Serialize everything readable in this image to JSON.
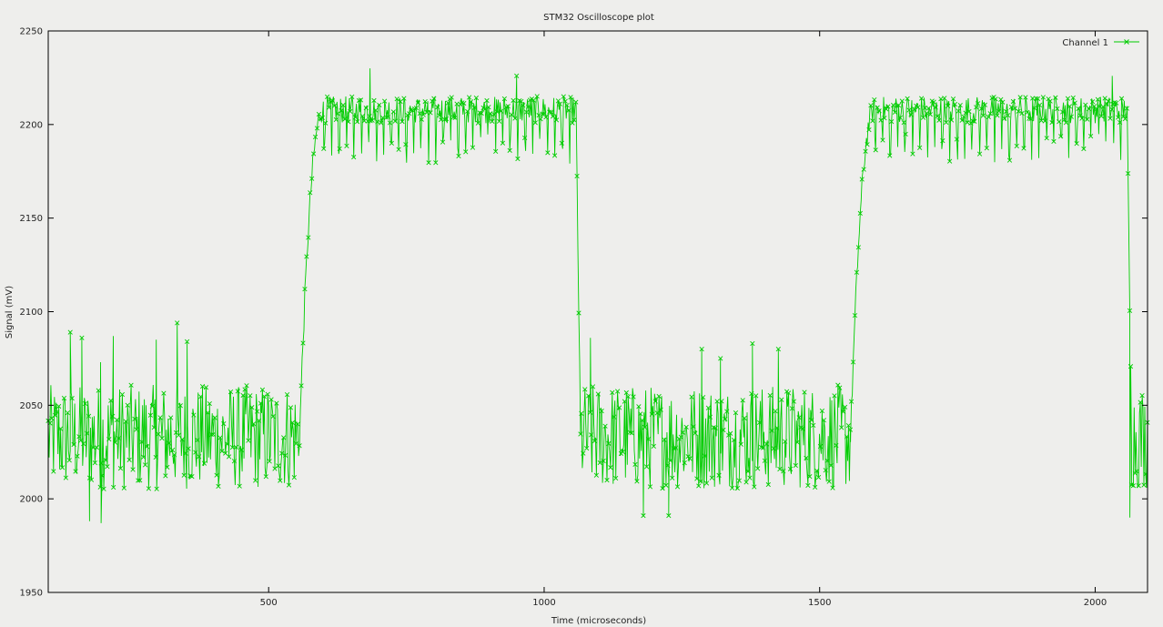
{
  "chart_data": {
    "type": "line",
    "title": "STM32 Oscilloscope plot",
    "xlabel": "Time (microseconds)",
    "ylabel": "Signal (mV)",
    "xlim": [
      100,
      2095
    ],
    "ylim": [
      1950,
      2250
    ],
    "x_ticks": [
      500,
      1000,
      1500,
      2000
    ],
    "y_ticks": [
      1950,
      2000,
      2050,
      2100,
      2150,
      2200,
      2250
    ],
    "grid": false,
    "legend_position": "top-right",
    "marker": "x",
    "series": [
      {
        "name": "Channel 1",
        "color": "#00cc00",
        "segments": [
          {
            "x_start": 100,
            "x_end": 556,
            "kind": "low",
            "center": 2033,
            "spread": 28
          },
          {
            "x_start": 556,
            "x_end": 600,
            "kind": "rise",
            "from": 2033,
            "to": 2208
          },
          {
            "x_start": 600,
            "x_end": 1058,
            "kind": "high",
            "center": 2205,
            "spread": 16
          },
          {
            "x_start": 1058,
            "x_end": 1066,
            "kind": "fall",
            "from": 2205,
            "to": 2033
          },
          {
            "x_start": 1066,
            "x_end": 1556,
            "kind": "low",
            "center": 2033,
            "spread": 28
          },
          {
            "x_start": 1556,
            "x_end": 1600,
            "kind": "rise",
            "from": 2033,
            "to": 2208
          },
          {
            "x_start": 1600,
            "x_end": 2058,
            "kind": "high",
            "center": 2205,
            "spread": 16
          },
          {
            "x_start": 2058,
            "x_end": 2066,
            "kind": "fall",
            "from": 2205,
            "to": 2033
          },
          {
            "x_start": 2066,
            "x_end": 2095,
            "kind": "low",
            "center": 2033,
            "spread": 28
          }
        ],
        "outliers": [
          {
            "x": 140,
            "y": 2089
          },
          {
            "x": 161,
            "y": 2086
          },
          {
            "x": 195,
            "y": 2073
          },
          {
            "x": 218,
            "y": 2087
          },
          {
            "x": 296,
            "y": 2085
          },
          {
            "x": 334,
            "y": 2094
          },
          {
            "x": 352,
            "y": 2084
          },
          {
            "x": 175,
            "y": 1988
          },
          {
            "x": 196,
            "y": 1987
          },
          {
            "x": 684,
            "y": 2230
          },
          {
            "x": 1084,
            "y": 2086
          },
          {
            "x": 1286,
            "y": 2080
          },
          {
            "x": 1320,
            "y": 2075
          },
          {
            "x": 1378,
            "y": 2083
          },
          {
            "x": 1425,
            "y": 2080
          },
          {
            "x": 1180,
            "y": 1991
          },
          {
            "x": 1226,
            "y": 1991
          },
          {
            "x": 2063,
            "y": 1990
          },
          {
            "x": 2031,
            "y": 2226
          },
          {
            "x": 950,
            "y": 2226
          }
        ]
      }
    ]
  }
}
